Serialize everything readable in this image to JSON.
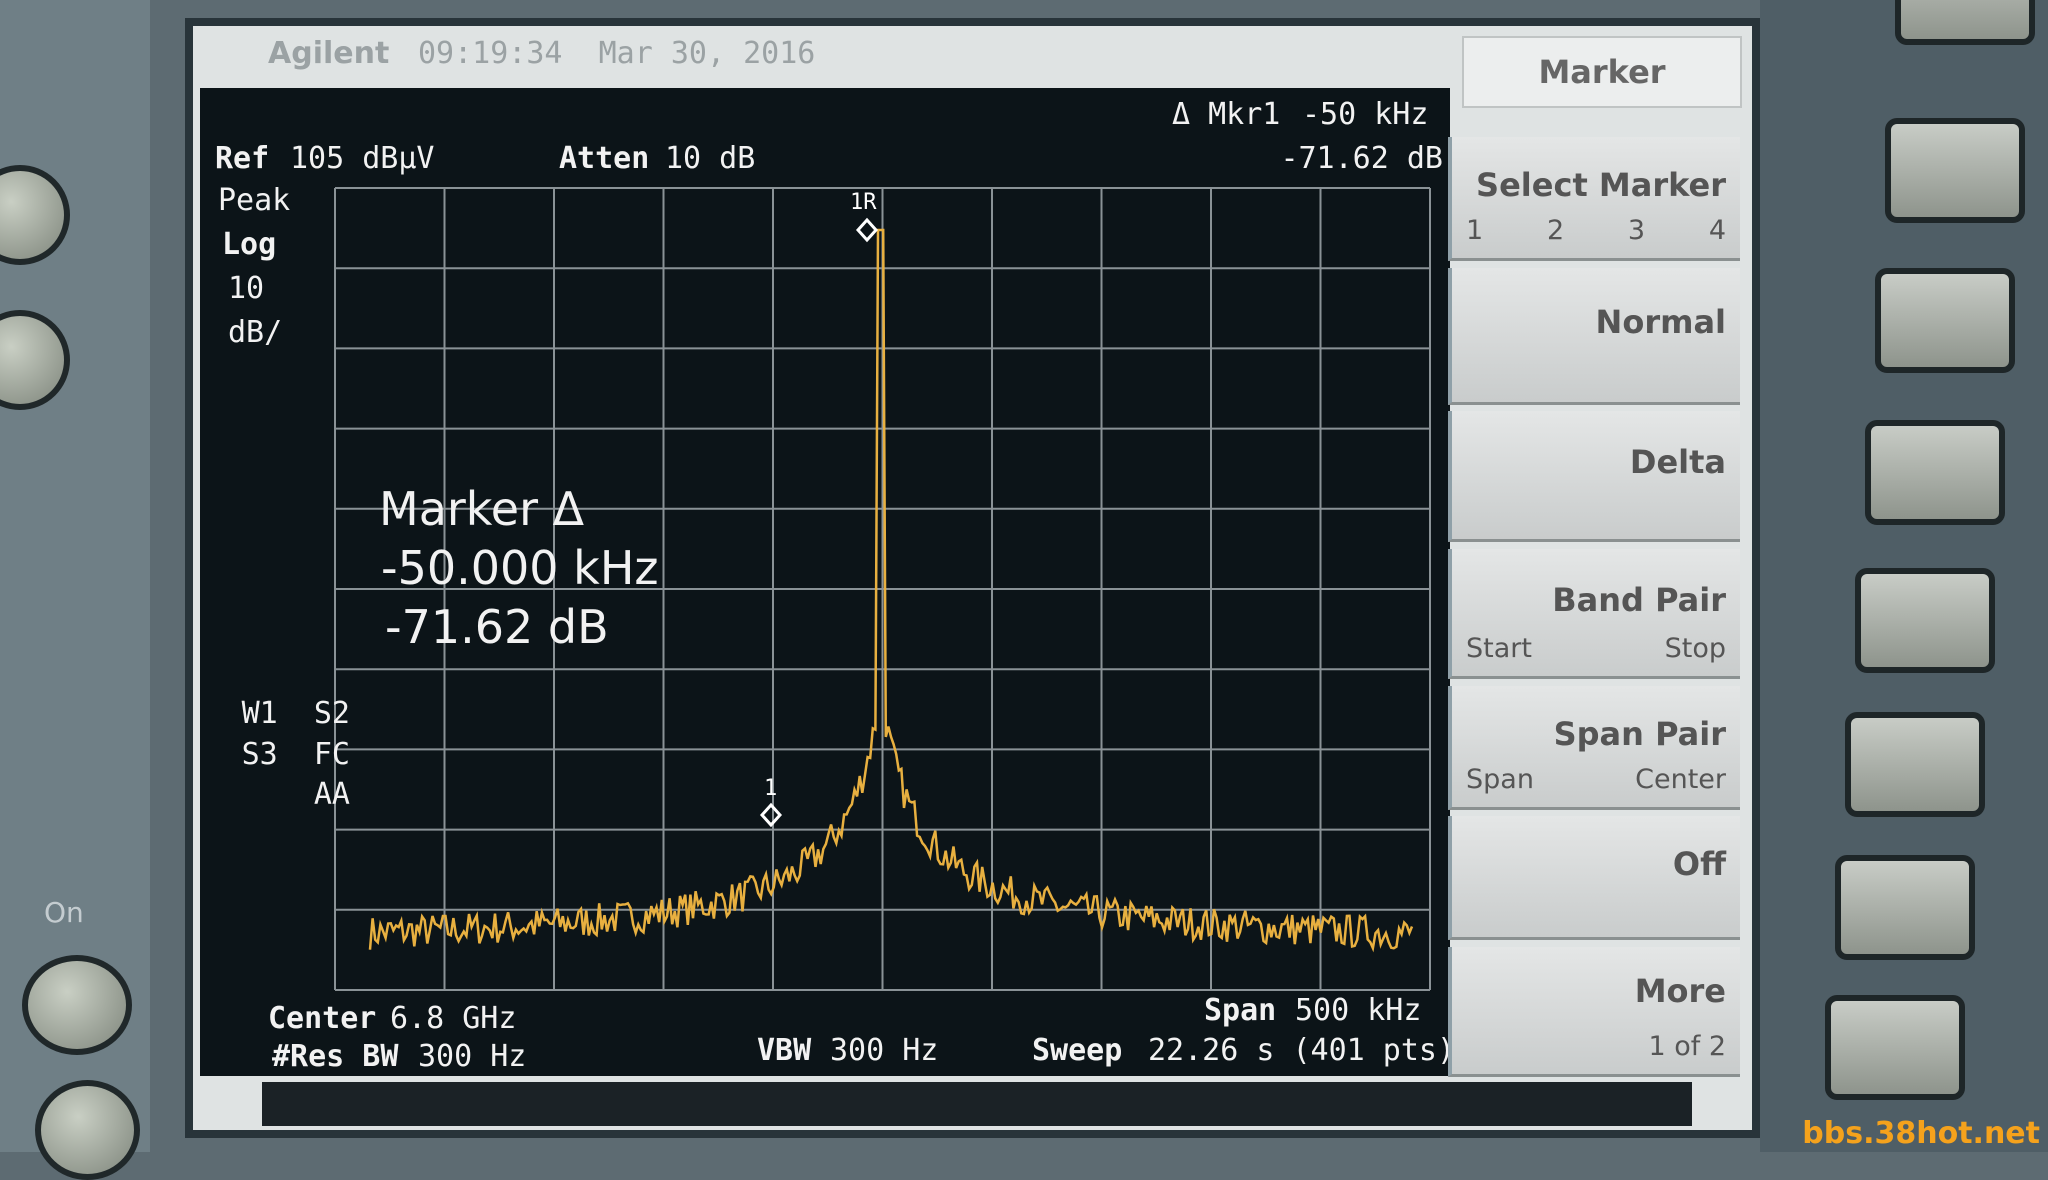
{
  "header": {
    "brand": "Agilent",
    "timestamp": "09:19:34  Mar 30, 2016"
  },
  "marker_readout": {
    "label": "Δ Mkr1",
    "frequency": "-50 kHz",
    "amplitude": "-71.62 dB"
  },
  "settings": {
    "ref_label": "Ref",
    "ref_value": "105 dBµV",
    "atten_label": "Atten",
    "atten_value": "10 dB",
    "detector": "Peak",
    "scale_type": "Log",
    "scale_value": "10",
    "scale_unit": "dB/",
    "flags": [
      "W1  S2",
      "S3  FC",
      "AA"
    ]
  },
  "marker_annotation": {
    "title": "Marker Δ",
    "frequency": "-50.000 kHz",
    "amplitude": "-71.62 dB"
  },
  "trace_markers": [
    "1R",
    "1"
  ],
  "footer": {
    "center_label": "Center",
    "center_value": "6.8 GHz",
    "rbw_label": "#Res BW",
    "rbw_value": "300 Hz",
    "vbw_label": "VBW",
    "vbw_value": "300 Hz",
    "span_label": "Span",
    "span_value": "500 kHz",
    "sweep_label": "Sweep",
    "sweep_value": "22.26 s (401 pts)"
  },
  "softkeys": {
    "title": "Marker",
    "items": [
      {
        "label": "Select Marker",
        "options": [
          "1",
          "2",
          "3",
          "4"
        ]
      },
      {
        "label": "Normal"
      },
      {
        "label": "Delta"
      },
      {
        "label": "Band Pair",
        "options": [
          "Start",
          "Stop"
        ]
      },
      {
        "label": "Span Pair",
        "options": [
          "Span",
          "Center"
        ]
      },
      {
        "label": "Off"
      },
      {
        "label": "More",
        "options": [
          "1 of 2"
        ]
      }
    ]
  },
  "bezel": {
    "on_label": "On"
  },
  "watermark": "bbs.38hot.net"
}
